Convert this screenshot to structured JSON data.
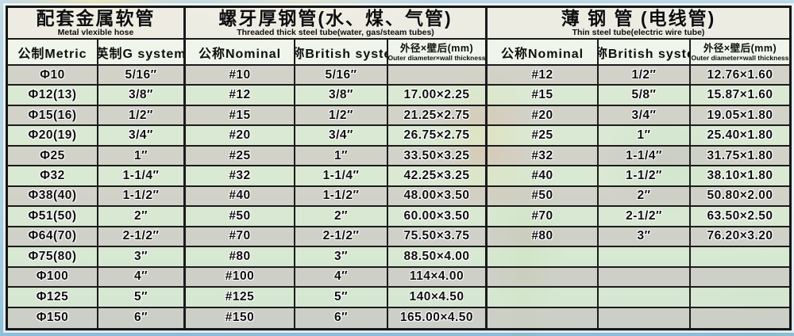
{
  "sections": [
    {
      "title_cn": "配套金属软管",
      "title_en": "Metal vlexible hose",
      "columns": [
        {
          "label": "公制Metric"
        },
        {
          "label": "英制G system"
        }
      ]
    },
    {
      "title_cn": "螺牙厚钢管(水、煤、气管)",
      "title_en": "Threaded thick steel tube(water, gas/steam tubes)",
      "columns": [
        {
          "label": "公称Nominal"
        },
        {
          "label": "英称British system"
        },
        {
          "label": "外径×壁后(mm)",
          "sublabel": "Outer diameter×wall thickness"
        }
      ]
    },
    {
      "title_cn": "薄 钢 管 (电线管)",
      "title_en": "Thin steel tube(electric wire tube)",
      "columns": [
        {
          "label": "公称Nominal"
        },
        {
          "label": "英称British system"
        },
        {
          "label": "外径×壁后(mm)",
          "sublabel": "Outer diameter×wall thickness"
        }
      ]
    }
  ],
  "rows": [
    [
      "Φ10",
      "5/16″",
      "#10",
      "5/16″",
      "",
      "#12",
      "1/2″",
      "12.76×1.60"
    ],
    [
      "Φ12(13)",
      "3/8″",
      "#12",
      "3/8″",
      "17.00×2.25",
      "#15",
      "5/8″",
      "15.87×1.60"
    ],
    [
      "Φ15(16)",
      "1/2″",
      "#15",
      "1/2″",
      "21.25×2.75",
      "#20",
      "3/4″",
      "19.05×1.80"
    ],
    [
      "Φ20(19)",
      "3/4″",
      "#20",
      "3/4″",
      "26.75×2.75",
      "#25",
      "1″",
      "25.40×1.80"
    ],
    [
      "Φ25",
      "1″",
      "#25",
      "1″",
      "33.50×3.25",
      "#32",
      "1-1/4″",
      "31.75×1.80"
    ],
    [
      "Φ32",
      "1-1/4″",
      "#32",
      "1-1/4″",
      "42.25×3.25",
      "#40",
      "1-1/2″",
      "38.10×1.80"
    ],
    [
      "Φ38(40)",
      "1-1/2″",
      "#40",
      "1-1/2″",
      "48.00×3.50",
      "#50",
      "2″",
      "50.80×2.00"
    ],
    [
      "Φ51(50)",
      "2″",
      "#50",
      "2″",
      "60.00×3.50",
      "#70",
      "2-1/2″",
      "63.50×2.50"
    ],
    [
      "Φ64(70)",
      "2-1/2″",
      "#70",
      "2-1/2″",
      "75.50×3.75",
      "#80",
      "3″",
      "76.20×3.20"
    ],
    [
      "Φ75(80)",
      "3″",
      "#80",
      "3″",
      "88.50×4.00",
      "",
      "",
      ""
    ],
    [
      "Φ100",
      "4″",
      "#100",
      "4″",
      "114×4.00",
      "",
      "",
      ""
    ],
    [
      "Φ125",
      "5″",
      "#125",
      "5″",
      "140×4.50",
      "",
      "",
      ""
    ],
    [
      "Φ150",
      "6″",
      "#150",
      "6″",
      "165.00×4.50",
      "",
      "",
      ""
    ]
  ],
  "colors": {
    "row_tan": "#d5d0c2",
    "row_green": "#deebcf",
    "group_header_bg": "#f0edE2",
    "column_header_bg": "#f2f6e9",
    "border": "#1b1b1b",
    "page_bg": "#b6d8ea"
  }
}
